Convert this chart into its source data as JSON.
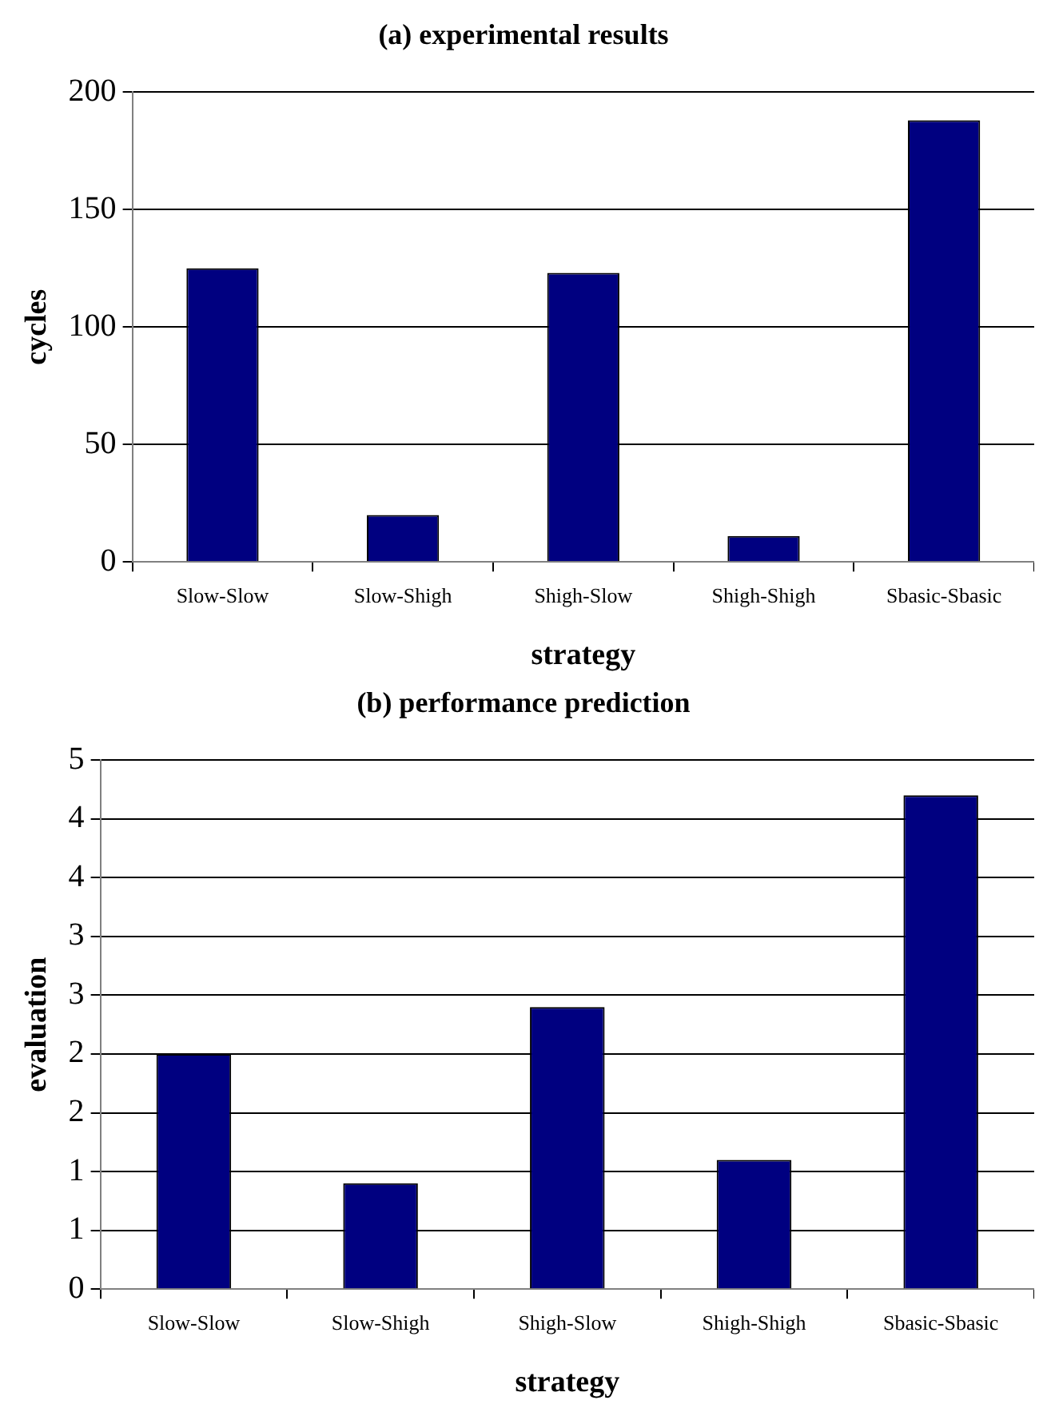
{
  "chart_data": [
    {
      "type": "bar",
      "title": "(a) experimental results",
      "xlabel": "strategy",
      "ylabel": "cycles",
      "categories": [
        "Slow-Slow",
        "Slow-Shigh",
        "Shigh-Slow",
        "Shigh-Shigh",
        "Sbasic-Sbasic"
      ],
      "values": [
        125,
        20,
        123,
        11,
        188
      ],
      "color": "#000080",
      "ylim": [
        0,
        200
      ],
      "yticks": [
        0,
        50,
        100,
        150,
        200
      ],
      "grid": "y",
      "legend": false
    },
    {
      "type": "bar",
      "title": "(b) performance prediction",
      "xlabel": "strategy",
      "ylabel": "evaluation",
      "categories": [
        "Slow-Slow",
        "Slow-Shigh",
        "Shigh-Slow",
        "Shigh-Shigh",
        "Sbasic-Sbasic"
      ],
      "values": [
        2.0,
        0.9,
        2.4,
        1.1,
        4.2
      ],
      "color": "#000080",
      "ylim": [
        0,
        4.5
      ],
      "yticks": [
        0,
        {
          "value": 0.5,
          "label": "1"
        },
        1,
        {
          "value": 1.5,
          "label": "2"
        },
        2,
        {
          "value": 2.5,
          "label": "3"
        },
        3,
        {
          "value": 3.5,
          "label": "4"
        },
        4,
        {
          "value": 4.5,
          "label": "5"
        }
      ],
      "grid": "y",
      "legend": false
    }
  ]
}
